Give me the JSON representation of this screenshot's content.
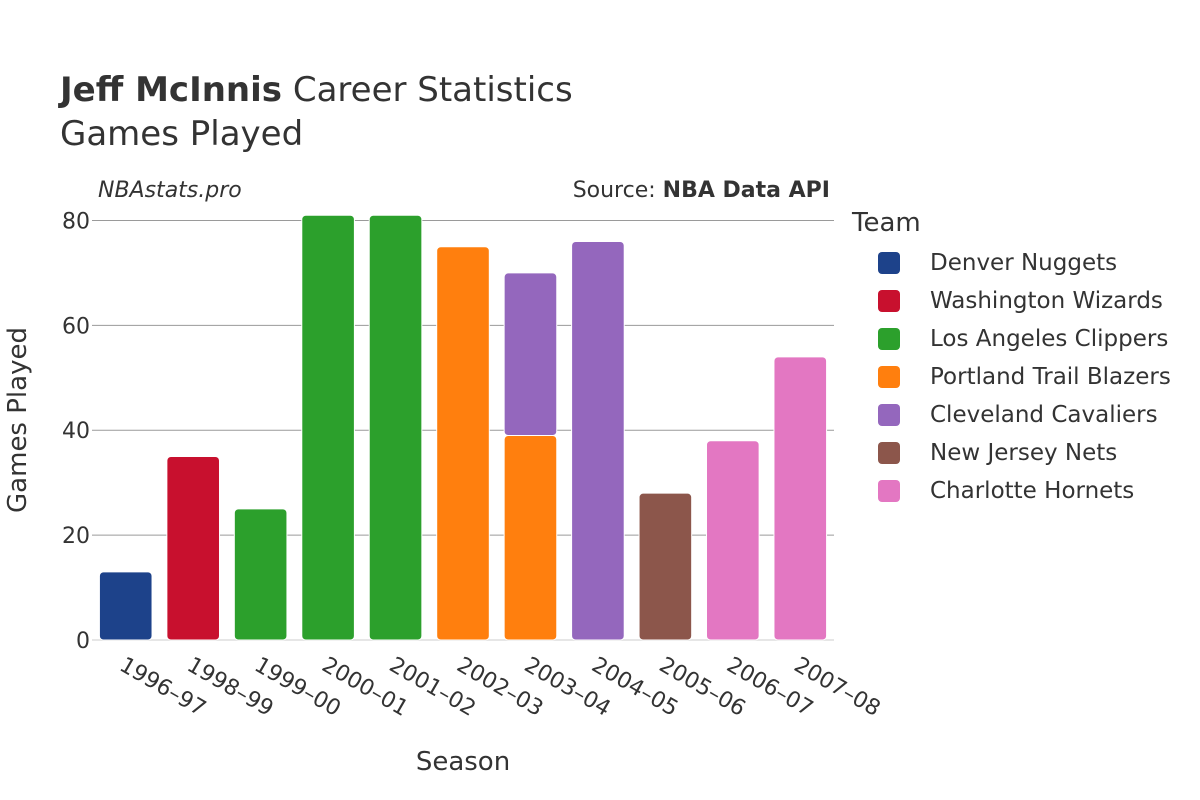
{
  "header": {
    "title_bold": "Jeff McInnis",
    "title_rest": " Career Statistics",
    "subtitle": "Games Played",
    "watermark": "NBAstats.pro",
    "source_prefix": "Source: ",
    "source_name": "NBA Data API"
  },
  "legend": {
    "title": "Team",
    "items": [
      {
        "label": "Denver Nuggets",
        "color": "#1d428a"
      },
      {
        "label": "Washington Wizards",
        "color": "#c8102e"
      },
      {
        "label": "Los Angeles Clippers",
        "color": "#2ca02c"
      },
      {
        "label": "Portland Trail Blazers",
        "color": "#ff7f0e"
      },
      {
        "label": "Cleveland Cavaliers",
        "color": "#9467bd"
      },
      {
        "label": "New Jersey Nets",
        "color": "#8c564b"
      },
      {
        "label": "Charlotte Hornets",
        "color": "#e377c2"
      }
    ]
  },
  "chart_data": {
    "type": "bar",
    "stacked": true,
    "categories": [
      "1996–97",
      "1998–99",
      "1999–00",
      "2000–01",
      "2001–02",
      "2002–03",
      "2003–04",
      "2004–05",
      "2005–06",
      "2006–07",
      "2007–08"
    ],
    "series": [
      {
        "name": "Denver Nuggets",
        "values": [
          13,
          0,
          0,
          0,
          0,
          0,
          0,
          0,
          0,
          0,
          0
        ]
      },
      {
        "name": "Washington Wizards",
        "values": [
          0,
          35,
          0,
          0,
          0,
          0,
          0,
          0,
          0,
          0,
          0
        ]
      },
      {
        "name": "Los Angeles Clippers",
        "values": [
          0,
          0,
          25,
          81,
          81,
          0,
          0,
          0,
          0,
          0,
          0
        ]
      },
      {
        "name": "Portland Trail Blazers",
        "values": [
          0,
          0,
          0,
          0,
          0,
          75,
          39,
          0,
          0,
          0,
          0
        ]
      },
      {
        "name": "Cleveland Cavaliers",
        "values": [
          0,
          0,
          0,
          0,
          0,
          0,
          31,
          76,
          0,
          0,
          0
        ]
      },
      {
        "name": "New Jersey Nets",
        "values": [
          0,
          0,
          0,
          0,
          0,
          0,
          0,
          0,
          28,
          0,
          0
        ]
      },
      {
        "name": "Charlotte Hornets",
        "values": [
          0,
          0,
          0,
          0,
          0,
          0,
          0,
          0,
          0,
          38,
          54
        ]
      }
    ],
    "xlabel": "Season",
    "ylabel": "Games Played",
    "ylim": [
      0,
      82
    ],
    "yticks": [
      0,
      20,
      40,
      60,
      80
    ],
    "grid": true,
    "legend_position": "right"
  }
}
